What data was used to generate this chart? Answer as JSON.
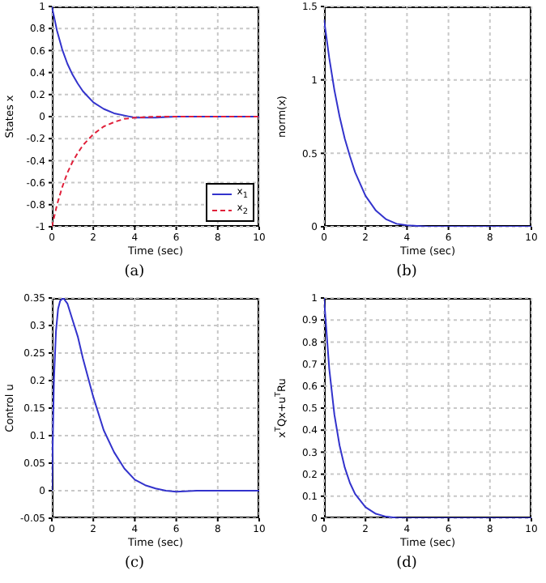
{
  "chart_data": [
    {
      "type": "line",
      "xlabel": "Time (sec)",
      "ylabel": "States x",
      "annotations": [
        "(a)"
      ],
      "xlim": [
        0,
        10
      ],
      "xticks": [
        0,
        2,
        4,
        6,
        8,
        10
      ],
      "ylim": [
        -1,
        1
      ],
      "yticks": [
        -1,
        -0.8,
        -0.6,
        -0.4,
        -0.2,
        0,
        0.2,
        0.4,
        0.6,
        0.8,
        1
      ],
      "grid": true,
      "legend": "bottom right",
      "x": [
        0,
        0.25,
        0.5,
        0.75,
        1,
        1.25,
        1.5,
        2,
        2.5,
        3,
        3.5,
        4,
        5,
        6,
        7,
        8,
        9,
        10
      ],
      "series": [
        {
          "name": "x$_{1}$",
          "color": "#3333cc",
          "line_style": "solid",
          "values": [
            1,
            0.78,
            0.61,
            0.48,
            0.38,
            0.3,
            0.23,
            0.13,
            0.07,
            0.03,
            0.01,
            -0.01,
            -0.01,
            0,
            0,
            0,
            0,
            0
          ]
        },
        {
          "name": "x$_{2}$",
          "color": "#e0203a",
          "line_style": "dashed",
          "values": [
            -1,
            -0.8,
            -0.64,
            -0.51,
            -0.41,
            -0.33,
            -0.26,
            -0.16,
            -0.09,
            -0.05,
            -0.02,
            -0.01,
            0,
            0,
            0,
            0,
            0,
            0
          ]
        }
      ]
    },
    {
      "type": "line",
      "xlabel": "Time (sec)",
      "ylabel": "norm(x)",
      "annotations": [
        "(b)"
      ],
      "xlim": [
        0,
        10
      ],
      "xticks": [
        0,
        2,
        4,
        6,
        8,
        10
      ],
      "ylim": [
        0,
        1.5
      ],
      "yticks": [
        0,
        0.5,
        1,
        1.5
      ],
      "grid": true,
      "color": "#3333cc",
      "x": [
        0,
        0.25,
        0.5,
        0.75,
        1,
        1.25,
        1.5,
        2,
        2.5,
        3,
        3.5,
        4,
        5,
        6,
        7,
        8,
        9,
        10
      ],
      "values": [
        1.41,
        1.15,
        0.93,
        0.75,
        0.6,
        0.48,
        0.37,
        0.21,
        0.11,
        0.05,
        0.02,
        0.01,
        0,
        0,
        0,
        0,
        0,
        0
      ]
    },
    {
      "type": "line",
      "xlabel": "Time (sec)",
      "ylabel": "Control u",
      "annotations": [
        "(c)"
      ],
      "xlim": [
        0,
        10
      ],
      "xticks": [
        0,
        2,
        4,
        6,
        8,
        10
      ],
      "ylim": [
        -0.05,
        0.35
      ],
      "yticks": [
        -0.05,
        0,
        0.05,
        0.1,
        0.15,
        0.2,
        0.25,
        0.3,
        0.35
      ],
      "grid": true,
      "color": "#3333cc",
      "x": [
        0,
        0.1,
        0.2,
        0.3,
        0.4,
        0.55,
        0.75,
        1,
        1.25,
        1.5,
        2,
        2.5,
        3,
        3.5,
        4,
        4.5,
        5,
        5.5,
        6,
        7,
        8,
        9,
        10
      ],
      "values": [
        0,
        0.2,
        0.29,
        0.33,
        0.345,
        0.35,
        0.34,
        0.31,
        0.28,
        0.24,
        0.17,
        0.11,
        0.07,
        0.04,
        0.02,
        0.01,
        0.004,
        0,
        -0.002,
        0,
        0,
        0,
        0
      ]
    },
    {
      "type": "line",
      "xlabel": "Time (sec)",
      "ylabel": "x$^{T}$Qx+u$^{T}$Ru",
      "annotations": [
        "(d)"
      ],
      "xlim": [
        0,
        10
      ],
      "xticks": [
        0,
        2,
        4,
        6,
        8,
        10
      ],
      "ylim": [
        0,
        1
      ],
      "yticks": [
        0,
        0.1,
        0.2,
        0.3,
        0.4,
        0.5,
        0.6,
        0.7,
        0.8,
        0.9,
        1
      ],
      "grid": true,
      "color": "#3333cc",
      "x": [
        0,
        0.25,
        0.5,
        0.75,
        1,
        1.25,
        1.5,
        2,
        2.5,
        3,
        3.5,
        4,
        5,
        6,
        7,
        8,
        9,
        10
      ],
      "values": [
        1,
        0.68,
        0.47,
        0.33,
        0.23,
        0.16,
        0.11,
        0.05,
        0.02,
        0.007,
        0.002,
        0,
        0,
        0,
        0,
        0,
        0,
        0
      ]
    }
  ]
}
